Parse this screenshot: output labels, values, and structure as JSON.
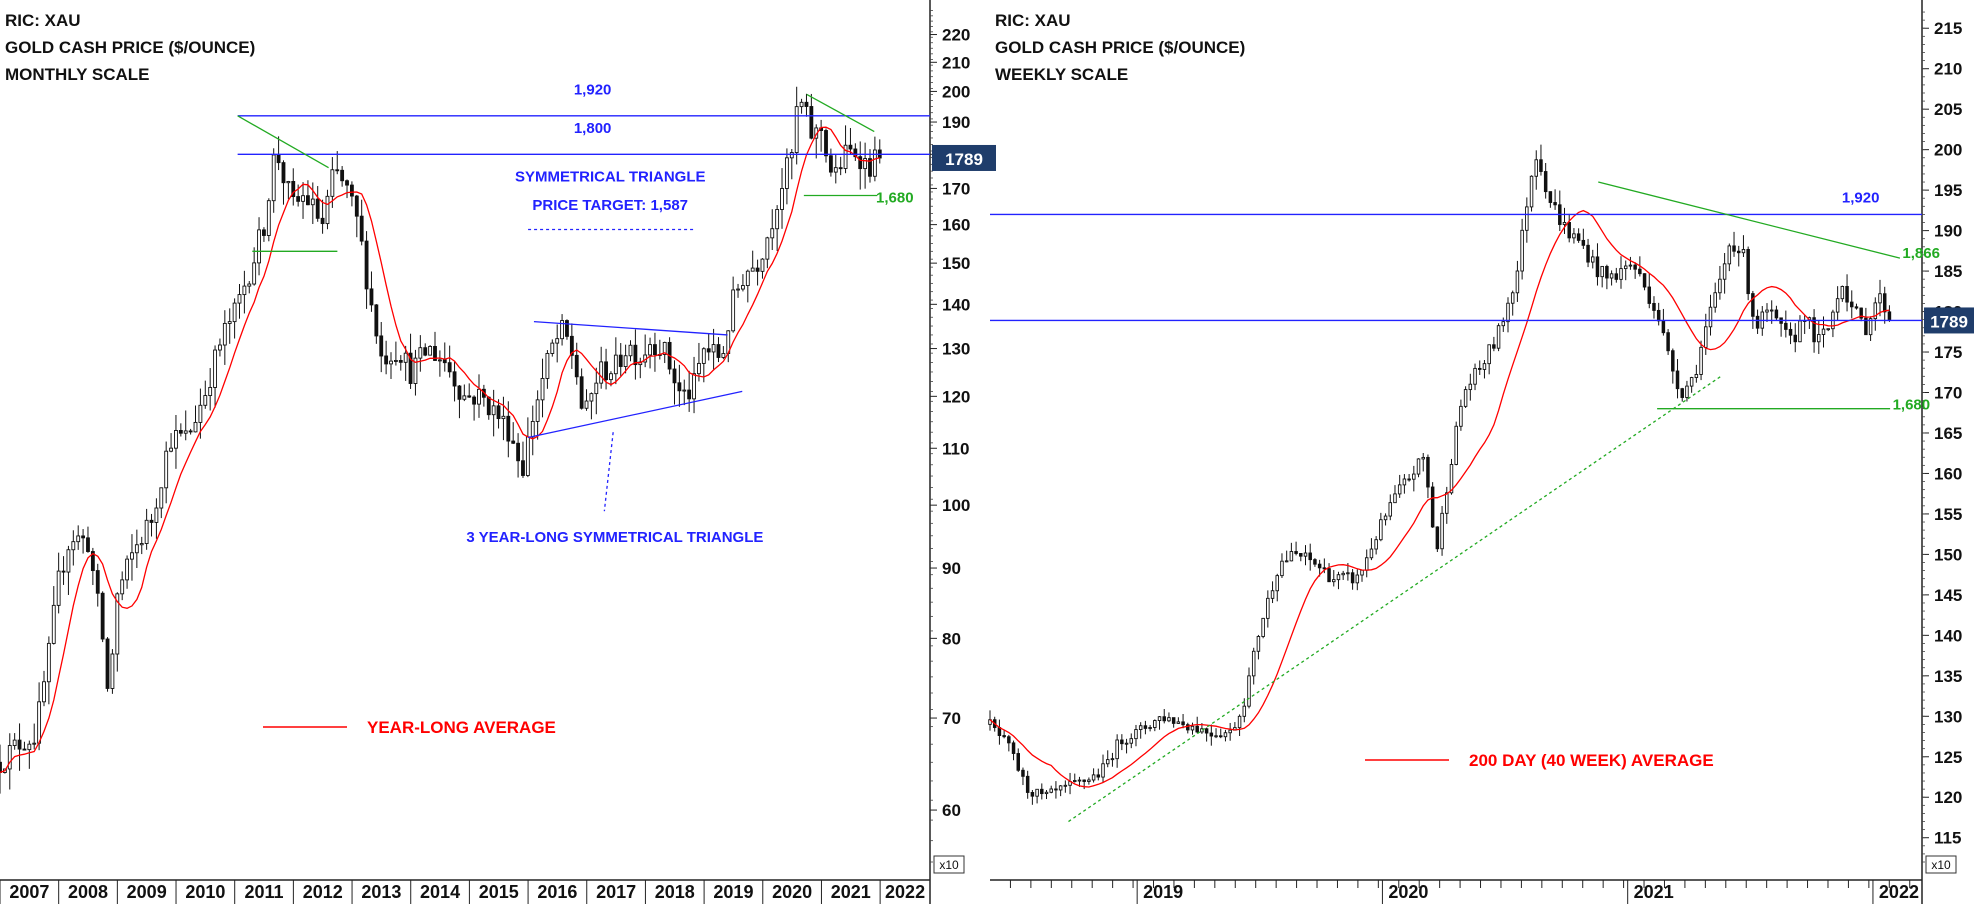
{
  "chart_data": [
    {
      "type": "candlestick",
      "title_lines": [
        "RIC: XAU",
        "GOLD CASH PRICE ($/OUNCE)",
        "MONTHLY SCALE"
      ],
      "scale": "log",
      "y_axis_multiplier_label": "x10",
      "y_ticks": [
        60,
        70,
        80,
        90,
        100,
        110,
        120,
        130,
        140,
        150,
        160,
        170,
        180,
        190,
        200,
        210,
        220
      ],
      "ylim": [
        55,
        230
      ],
      "xlim": [
        2007.0,
        2022.85
      ],
      "x_tick_labels": [
        "2007",
        "2008",
        "2009",
        "2010",
        "2011",
        "2012",
        "2013",
        "2014",
        "2015",
        "2016",
        "2017",
        "2018",
        "2019",
        "2020",
        "2021",
        "2022"
      ],
      "last_price_label": "1789",
      "last_price": 178.9,
      "price_path": [
        [
          2007.0,
          65
        ],
        [
          2007.3,
          67
        ],
        [
          2007.6,
          68
        ],
        [
          2007.8,
          76
        ],
        [
          2008.0,
          88
        ],
        [
          2008.2,
          95
        ],
        [
          2008.5,
          94
        ],
        [
          2008.75,
          80
        ],
        [
          2008.85,
          72
        ],
        [
          2009.0,
          86
        ],
        [
          2009.3,
          93
        ],
        [
          2009.6,
          98
        ],
        [
          2009.9,
          112
        ],
        [
          2010.2,
          112
        ],
        [
          2010.5,
          121
        ],
        [
          2010.8,
          133
        ],
        [
          2011.0,
          138
        ],
        [
          2011.3,
          150
        ],
        [
          2011.5,
          160
        ],
        [
          2011.7,
          182
        ],
        [
          2011.85,
          172
        ],
        [
          2012.0,
          165
        ],
        [
          2012.2,
          168
        ],
        [
          2012.5,
          160
        ],
        [
          2012.7,
          175
        ],
        [
          2012.9,
          170
        ],
        [
          2013.1,
          160
        ],
        [
          2013.3,
          142
        ],
        [
          2013.5,
          128
        ],
        [
          2013.8,
          130
        ],
        [
          2014.0,
          125
        ],
        [
          2014.3,
          130
        ],
        [
          2014.6,
          127
        ],
        [
          2014.9,
          120
        ],
        [
          2015.2,
          120
        ],
        [
          2015.5,
          116
        ],
        [
          2015.7,
          113
        ],
        [
          2015.9,
          106
        ],
        [
          2016.1,
          117
        ],
        [
          2016.4,
          130
        ],
        [
          2016.6,
          134
        ],
        [
          2016.8,
          127
        ],
        [
          2016.95,
          115
        ],
        [
          2017.2,
          125
        ],
        [
          2017.5,
          126
        ],
        [
          2017.7,
          131
        ],
        [
          2017.9,
          128
        ],
        [
          2018.1,
          132
        ],
        [
          2018.3,
          130
        ],
        [
          2018.6,
          120
        ],
        [
          2018.8,
          121
        ],
        [
          2019.0,
          130
        ],
        [
          2019.3,
          128
        ],
        [
          2019.5,
          141
        ],
        [
          2019.7,
          148
        ],
        [
          2019.9,
          150
        ],
        [
          2020.1,
          158
        ],
        [
          2020.3,
          170
        ],
        [
          2020.5,
          180
        ],
        [
          2020.6,
          197
        ],
        [
          2020.7,
          194
        ],
        [
          2020.85,
          185
        ],
        [
          2021.0,
          188
        ],
        [
          2021.2,
          172
        ],
        [
          2021.4,
          180
        ],
        [
          2021.6,
          181
        ],
        [
          2021.8,
          176
        ],
        [
          2021.95,
          179
        ],
        [
          2022.05,
          178.9
        ]
      ],
      "moving_average": {
        "name": "YEAR-LONG AVERAGE",
        "color": "#ff0000",
        "window_points": 8
      },
      "horizontal_lines": [
        {
          "value": 192.0,
          "label": "1,920",
          "color": "#2222ff"
        },
        {
          "value": 180.0,
          "label": "1,800",
          "color": "#2222ff"
        }
      ],
      "trend_lines": [
        {
          "points": [
            [
              2011.05,
              192
            ],
            [
              2012.6,
              176
            ]
          ],
          "color": "#22aa22",
          "dash": false
        },
        {
          "points": [
            [
              2011.3,
              153
            ],
            [
              2012.75,
              153
            ]
          ],
          "color": "#22aa22",
          "dash": false
        },
        {
          "points": [
            [
              2016.1,
              136
            ],
            [
              2019.4,
              133
            ]
          ],
          "color": "#2222ff",
          "dash": false
        },
        {
          "points": [
            [
              2016.0,
              112
            ],
            [
              2019.65,
              121
            ]
          ],
          "color": "#2222ff",
          "dash": false
        },
        {
          "points": [
            [
              2020.75,
              199
            ],
            [
              2021.9,
              187
            ]
          ],
          "color": "#22aa22",
          "dash": false
        },
        {
          "points": [
            [
              2020.7,
              168
            ],
            [
              2021.95,
              168
            ]
          ],
          "color": "#22aa22",
          "dash": false
        },
        {
          "points": [
            [
              2016.0,
              158.7
            ],
            [
              2018.85,
              158.7
            ]
          ],
          "color": "#2222ff",
          "dash": true
        },
        {
          "points": [
            [
              2017.45,
              113
            ],
            [
              2017.3,
              99
            ]
          ],
          "color": "#2222ff",
          "dash": true
        }
      ],
      "annotations": [
        {
          "text": "1,920",
          "x": 2017.1,
          "y": 199,
          "color": "#2222ff",
          "anchor": "middle"
        },
        {
          "text": "1,800",
          "x": 2017.1,
          "y": 186.5,
          "color": "#2222ff",
          "anchor": "middle"
        },
        {
          "text": "1,680",
          "x": 2021.93,
          "y": 166,
          "color": "#22aa22",
          "anchor": "start"
        },
        {
          "text": "SYMMETRICAL TRIANGLE",
          "x": 2017.4,
          "y": 172,
          "color": "#2222ff",
          "anchor": "middle"
        },
        {
          "text": "PRICE TARGET: 1,587",
          "x": 2017.4,
          "y": 164,
          "color": "#2222ff",
          "anchor": "middle"
        },
        {
          "text": "3 YEAR-LONG SYMMETRICAL TRIANGLE",
          "x": 2017.48,
          "y": 94,
          "color": "#2222ff",
          "anchor": "middle"
        }
      ],
      "legend": {
        "label": "YEAR-LONG AVERAGE",
        "color": "#ff0000",
        "position": "lower-center"
      }
    },
    {
      "type": "candlestick",
      "title_lines": [
        "RIC: XAU",
        "GOLD CASH PRICE ($/OUNCE)",
        "WEEKLY SCALE"
      ],
      "scale": "linear",
      "y_axis_multiplier_label": "x10",
      "y_ticks": [
        115,
        120,
        125,
        130,
        135,
        140,
        145,
        150,
        155,
        160,
        165,
        170,
        175,
        180,
        185,
        190,
        195,
        200,
        205,
        210,
        215
      ],
      "ylim": [
        112,
        217.5
      ],
      "xlim": [
        2018.4,
        2022.2
      ],
      "x_tick_labels": [
        "2019",
        "2020",
        "2021",
        "2022"
      ],
      "last_price_label": "1789",
      "last_price": 178.9,
      "price_path": [
        [
          2018.4,
          129
        ],
        [
          2018.48,
          126
        ],
        [
          2018.55,
          121
        ],
        [
          2018.62,
          120
        ],
        [
          2018.7,
          121
        ],
        [
          2018.78,
          122
        ],
        [
          2018.85,
          123
        ],
        [
          2018.93,
          127
        ],
        [
          2019.0,
          128
        ],
        [
          2019.1,
          130
        ],
        [
          2019.2,
          129
        ],
        [
          2019.3,
          128
        ],
        [
          2019.38,
          128
        ],
        [
          2019.43,
          131
        ],
        [
          2019.5,
          141
        ],
        [
          2019.58,
          149
        ],
        [
          2019.65,
          150
        ],
        [
          2019.72,
          149
        ],
        [
          2019.8,
          147
        ],
        [
          2019.9,
          147
        ],
        [
          2019.97,
          152
        ],
        [
          2020.05,
          157
        ],
        [
          2020.12,
          160
        ],
        [
          2020.17,
          162
        ],
        [
          2020.22,
          150
        ],
        [
          2020.27,
          160
        ],
        [
          2020.33,
          170
        ],
        [
          2020.4,
          173
        ],
        [
          2020.47,
          177
        ],
        [
          2020.55,
          185
        ],
        [
          2020.6,
          196
        ],
        [
          2020.63,
          200
        ],
        [
          2020.68,
          194
        ],
        [
          2020.75,
          190
        ],
        [
          2020.82,
          188
        ],
        [
          2020.88,
          185
        ],
        [
          2020.92,
          184
        ],
        [
          2020.97,
          185
        ],
        [
          2021.02,
          186
        ],
        [
          2021.07,
          183
        ],
        [
          2021.12,
          180
        ],
        [
          2021.17,
          174
        ],
        [
          2021.22,
          170
        ],
        [
          2021.27,
          172
        ],
        [
          2021.32,
          178
        ],
        [
          2021.38,
          184
        ],
        [
          2021.42,
          189
        ],
        [
          2021.47,
          187
        ],
        [
          2021.52,
          178
        ],
        [
          2021.57,
          180
        ],
        [
          2021.62,
          178
        ],
        [
          2021.67,
          176
        ],
        [
          2021.72,
          180
        ],
        [
          2021.77,
          176
        ],
        [
          2021.82,
          178
        ],
        [
          2021.87,
          184
        ],
        [
          2021.92,
          180
        ],
        [
          2021.97,
          178
        ],
        [
          2022.02,
          182
        ],
        [
          2022.08,
          179
        ]
      ],
      "moving_average": {
        "name": "200 DAY (40 WEEK) AVERAGE",
        "color": "#ff0000",
        "window_points": 14
      },
      "horizontal_lines": [
        {
          "value": 192.0,
          "label": "1,920",
          "color": "#2222ff"
        },
        {
          "value": 178.9,
          "label": "",
          "color": "#2222ff"
        }
      ],
      "trend_lines": [
        {
          "points": [
            [
              2020.88,
              196
            ],
            [
              2022.11,
              186.6
            ]
          ],
          "color": "#22aa22",
          "dash": false
        },
        {
          "points": [
            [
              2021.12,
              168
            ],
            [
              2022.07,
              168
            ]
          ],
          "color": "#22aa22",
          "dash": false
        },
        {
          "points": [
            [
              2018.72,
              117
            ],
            [
              2021.38,
              172
            ]
          ],
          "color": "#22aa22",
          "dash": true
        }
      ],
      "annotations": [
        {
          "text": "1,920",
          "x": 2021.95,
          "y": 193.5,
          "color": "#2222ff",
          "anchor": "middle"
        },
        {
          "text": "1,866",
          "x": 2022.12,
          "y": 186.6,
          "color": "#22aa22",
          "anchor": "start"
        },
        {
          "text": "1,680",
          "x": 2022.08,
          "y": 167.9,
          "color": "#22aa22",
          "anchor": "start"
        }
      ],
      "legend": {
        "label": "200 DAY (40 WEEK) AVERAGE",
        "color": "#ff0000",
        "position": "lower-center"
      }
    }
  ]
}
